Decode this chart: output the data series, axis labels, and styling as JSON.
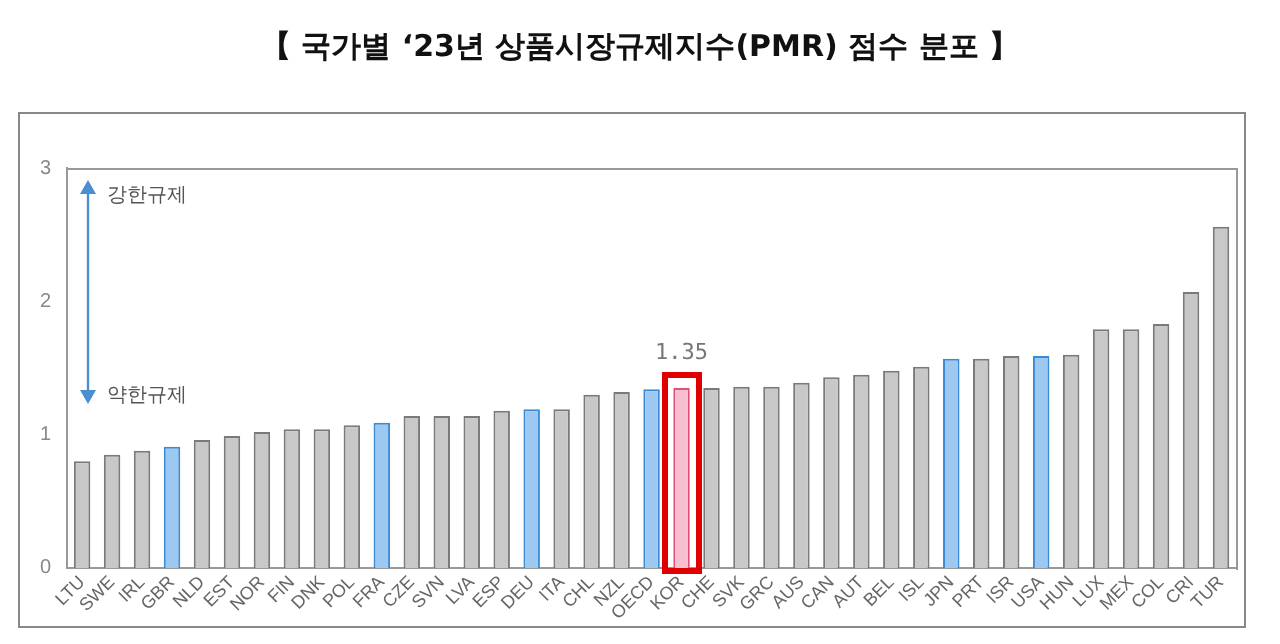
{
  "chart_data": {
    "type": "bar",
    "title": "【 국가별 ‘23년 상품시장규제지수(PMR) 점수 분포 】",
    "categories": [
      "LTU",
      "SWE",
      "IRL",
      "GBR",
      "NLD",
      "EST",
      "NOR",
      "FIN",
      "DNK",
      "POL",
      "FRA",
      "CZE",
      "SVN",
      "LVA",
      "ESP",
      "DEU",
      "ITA",
      "CHL",
      "NZL",
      "OECD",
      "KOR",
      "CHE",
      "SVK",
      "GRC",
      "AUS",
      "CAN",
      "AUT",
      "BEL",
      "ISL",
      "JPN",
      "PRT",
      "ISR",
      "USA",
      "HUN",
      "LUX",
      "MEX",
      "COL",
      "CRI",
      "TUR"
    ],
    "values": [
      0.8,
      0.85,
      0.88,
      0.91,
      0.96,
      0.99,
      1.02,
      1.04,
      1.04,
      1.07,
      1.09,
      1.14,
      1.14,
      1.14,
      1.18,
      1.19,
      1.19,
      1.3,
      1.32,
      1.34,
      1.35,
      1.35,
      1.36,
      1.36,
      1.39,
      1.43,
      1.45,
      1.48,
      1.51,
      1.57,
      1.57,
      1.59,
      1.59,
      1.6,
      1.79,
      1.79,
      1.83,
      2.07,
      2.56
    ],
    "colors": [
      "#c8c8c8",
      "#c8c8c8",
      "#c8c8c8",
      "#9dc8f0",
      "#c8c8c8",
      "#c8c8c8",
      "#c8c8c8",
      "#c8c8c8",
      "#c8c8c8",
      "#c8c8c8",
      "#9dc8f0",
      "#c8c8c8",
      "#c8c8c8",
      "#c8c8c8",
      "#c8c8c8",
      "#9dc8f0",
      "#c8c8c8",
      "#c8c8c8",
      "#c8c8c8",
      "#9dc8f0",
      "#f7bfd0",
      "#c8c8c8",
      "#c8c8c8",
      "#c8c8c8",
      "#c8c8c8",
      "#c8c8c8",
      "#c8c8c8",
      "#c8c8c8",
      "#c8c8c8",
      "#9dc8f0",
      "#c8c8c8",
      "#c8c8c8",
      "#9dc8f0",
      "#c8c8c8",
      "#c8c8c8",
      "#c8c8c8",
      "#c8c8c8",
      "#c8c8c8",
      "#c8c8c8"
    ],
    "value_labels": [
      null,
      null,
      null,
      null,
      null,
      null,
      null,
      null,
      null,
      null,
      null,
      null,
      null,
      null,
      null,
      null,
      null,
      null,
      null,
      null,
      "1.35",
      null,
      null,
      null,
      null,
      null,
      null,
      null,
      null,
      null,
      null,
      null,
      null,
      null,
      null,
      null,
      null,
      null,
      null
    ],
    "ylim": [
      0,
      3
    ],
    "yticks": [
      0,
      1,
      2,
      3
    ],
    "grid": false,
    "legend": false,
    "annotations": [
      "강한규제",
      "약한규제"
    ]
  }
}
